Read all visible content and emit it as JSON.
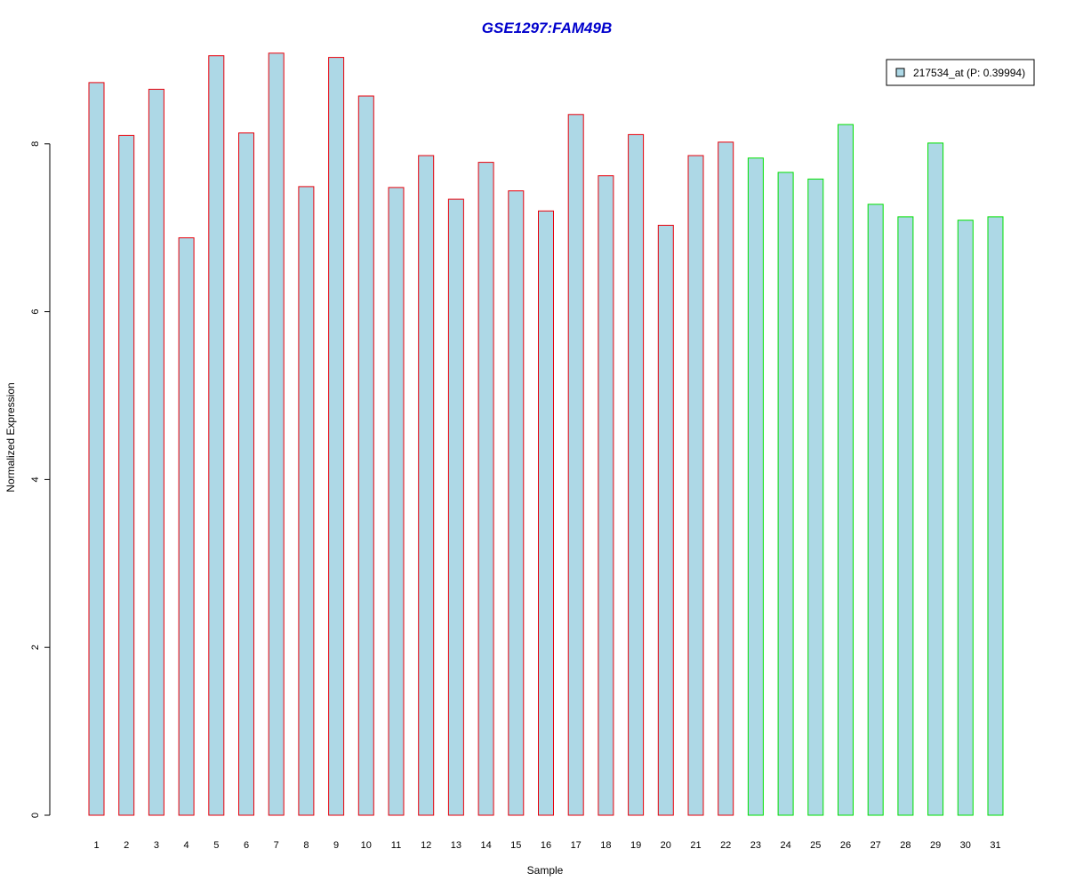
{
  "chart_data": {
    "type": "bar",
    "title": "GSE1297:FAM49B",
    "xlabel": "Sample",
    "ylabel": "Normalized Expression",
    "ylim": [
      0,
      9.2
    ],
    "yticks": [
      0,
      2,
      4,
      6,
      8
    ],
    "categories": [
      "1",
      "2",
      "3",
      "4",
      "5",
      "6",
      "7",
      "8",
      "9",
      "10",
      "11",
      "12",
      "13",
      "14",
      "15",
      "16",
      "17",
      "18",
      "19",
      "20",
      "21",
      "22",
      "23",
      "24",
      "25",
      "26",
      "27",
      "28",
      "29",
      "30",
      "31"
    ],
    "series": [
      {
        "name": "217534_at (P: 0.39994)",
        "values": [
          8.73,
          8.1,
          8.65,
          6.88,
          9.05,
          8.13,
          9.08,
          7.49,
          9.03,
          8.57,
          7.48,
          7.86,
          7.34,
          7.78,
          7.44,
          7.2,
          8.35,
          7.62,
          8.11,
          7.03,
          7.86,
          8.02,
          7.83,
          7.66,
          7.58,
          8.23,
          7.28,
          7.13,
          8.01,
          7.09,
          7.13
        ]
      }
    ],
    "groups": [
      {
        "samples": [
          1,
          2,
          3,
          4,
          5,
          6,
          7,
          8,
          9,
          10,
          11,
          12,
          13,
          14,
          15,
          16,
          17,
          18,
          19,
          20,
          21,
          22
        ],
        "border_color": "#e8000b"
      },
      {
        "samples": [
          23,
          24,
          25,
          26,
          27,
          28,
          29,
          30,
          31
        ],
        "border_color": "#00e000"
      }
    ],
    "bar_fill": "#add8e6",
    "title_color": "#0000cc",
    "legend_position": "top-right",
    "grid": false
  }
}
